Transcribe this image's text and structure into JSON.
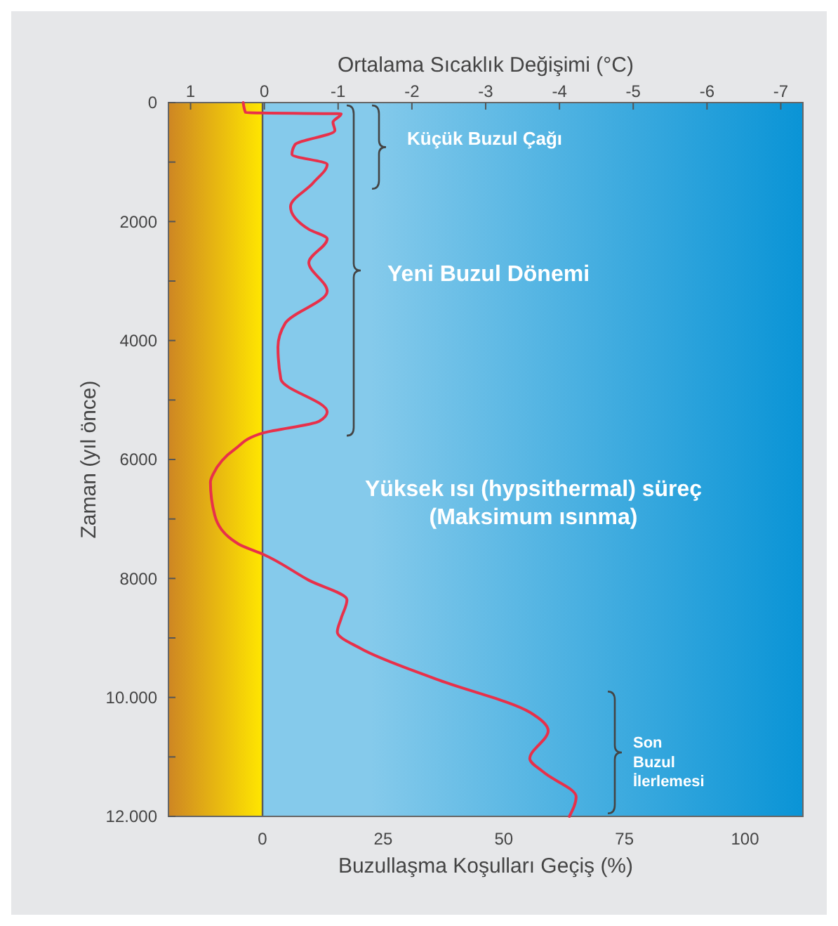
{
  "chart_data": {
    "type": "line",
    "xlabel": "Buzullaşma Koşulları Geçiş (%)",
    "x2label": "Ortalama Sıcaklık Değişimi (°C)",
    "ylabel": "Zaman (yıl önce)",
    "xlim": [
      -19.5,
      112
    ],
    "xticks": [
      0,
      25,
      50,
      75,
      100
    ],
    "x2lim": [
      1.3,
      -7.3
    ],
    "x2ticks": [
      1,
      0,
      -1,
      -2,
      -3,
      -4,
      -5,
      -6,
      -7
    ],
    "ylim": [
      12000,
      0
    ],
    "yticks": [
      0,
      {
        "value": 1000,
        "label": null
      },
      2000,
      {
        "value": 3000,
        "label": null
      },
      4000,
      {
        "value": 5000,
        "label": null
      },
      6000,
      {
        "value": 7000,
        "label": null
      },
      8000,
      {
        "value": 9000,
        "label": null
      },
      {
        "value": 10000,
        "label": "10.000"
      },
      {
        "value": 11000,
        "label": null
      },
      {
        "value": 12000,
        "label": "12.000"
      }
    ],
    "grid": false,
    "marker": "none",
    "line_style": "solid",
    "series": [
      {
        "color": "#e8304a",
        "x": [
          -4,
          -3.5,
          16.3,
          14.6,
          15,
          6.7,
          6.1,
          13.4,
          10.5,
          5.8,
          9.6,
          13.4,
          9.6,
          13.4,
          4.7,
          3.2,
          3.8,
          13.4,
          11.7,
          0.3,
          -5.8,
          -10.2,
          -10.8,
          -9.9,
          -5,
          0.3,
          9.6,
          17.5,
          16.3,
          15.5,
          20.4,
          35.9,
          55.4,
          59.2,
          55.4,
          58.3,
          65,
          63.6
        ],
        "values": [
          0,
          170,
          190,
          330,
          470,
          710,
          870,
          1040,
          1350,
          1750,
          2130,
          2290,
          2690,
          3170,
          3710,
          4110,
          4650,
          5200,
          5360,
          5550,
          5830,
          6240,
          6380,
          6940,
          7420,
          7600,
          8030,
          8360,
          8670,
          8900,
          9180,
          9690,
          10250,
          10560,
          11030,
          11260,
          11670,
          12000
        ]
      }
    ],
    "bands": [
      {
        "axis": "x",
        "from": -19.5,
        "to": 0,
        "color": "#f6a02a"
      },
      {
        "axis": "x",
        "from": 0,
        "to": 112,
        "color": "#0a94d6"
      }
    ],
    "ref_lines": [
      {
        "axis": "x",
        "value": 0,
        "color": "#5a5a5a"
      }
    ],
    "annotations": [
      "Küçük Buzul Çağı",
      "Yeni Buzul Dönemi",
      "Yüksek ısı (hypsithermal) süreç (Maksimum ısınma)",
      "Son Buzul İlerlemesi"
    ]
  }
}
